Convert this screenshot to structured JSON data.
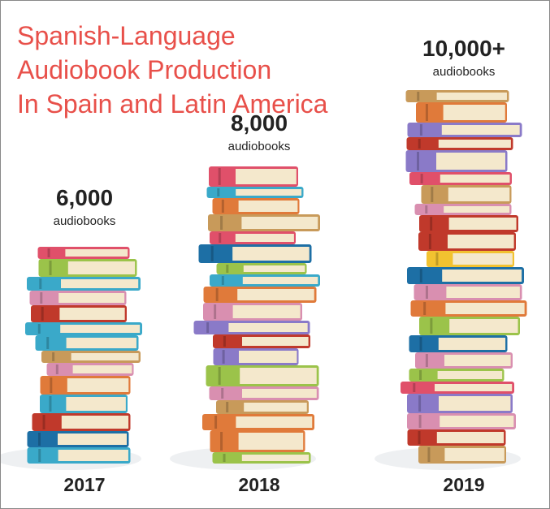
{
  "chart_data": {
    "type": "bookstack",
    "title": [
      "Spanish-Language",
      "Audiobook Production",
      "In Spain and Latin America"
    ],
    "categories": [
      "2017",
      "2018",
      "2019"
    ],
    "values": [
      6000,
      8000,
      10000
    ],
    "value_labels": [
      "6,000",
      "8,000",
      "10,000+"
    ],
    "unit": "audiobooks",
    "title_color": "#e8504a",
    "colors": [
      "#e0506a",
      "#c89a5a",
      "#3aa9c9",
      "#8a7ac8",
      "#e07a3a",
      "#f2c230",
      "#9bc34a",
      "#c0392b",
      "#1d6fa5",
      "#d98fb0"
    ]
  }
}
